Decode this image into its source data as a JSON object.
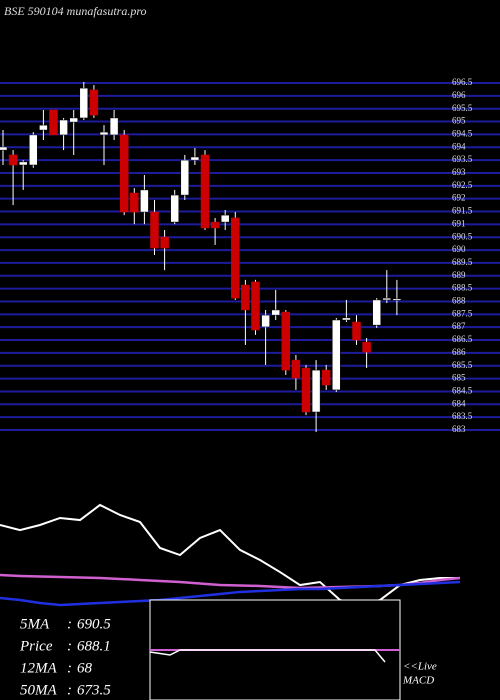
{
  "chart_data": [
    {
      "type": "candlestick",
      "title": "BSE 590104  munafasutra.pro",
      "up_color": "#ffffff",
      "down_color": "#cc0000",
      "grid_color": "#1c1c9c",
      "grid": true,
      "ylim": [
        683,
        696.5
      ],
      "yticks": [
        683,
        683.5,
        684,
        684.5,
        685,
        685.5,
        686,
        686.5,
        687,
        687.5,
        688,
        688.5,
        689,
        689.5,
        690,
        690.5,
        691,
        691.5,
        692,
        692.5,
        693,
        693.5,
        694,
        694.5,
        695,
        695.5,
        696,
        696.5
      ],
      "open": [
        693.89,
        693.7,
        693.31,
        693.31,
        694.67,
        695.45,
        694.48,
        694.98,
        695.14,
        696.23,
        694.48,
        694.48,
        694.48,
        692.22,
        691.48,
        691.48,
        690.51,
        691.09,
        692.14,
        693.5,
        693.7,
        691.09,
        691.09,
        691.25,
        688.64,
        688.76,
        687.01,
        687.47,
        687.59,
        685.72,
        685.41,
        683.7,
        685.33,
        684.56,
        687.28,
        687.2,
        686.42,
        687.08,
        688.06,
        688.06
      ],
      "high": [
        694.67,
        693.89,
        693.5,
        694.59,
        695.45,
        695.45,
        695.14,
        695.45,
        696.54,
        696.42,
        694.86,
        695.45,
        694.67,
        692.41,
        692.92,
        691.95,
        690.78,
        692.34,
        693.7,
        693.97,
        693.89,
        691.25,
        691.56,
        691.48,
        688.84,
        688.84,
        687.67,
        688.45,
        687.67,
        685.92,
        685.53,
        685.72,
        685.53,
        687.36,
        688.06,
        687.47,
        686.58,
        688.13,
        689.22,
        688.84
      ],
      "low": [
        693.31,
        691.75,
        692.34,
        693.2,
        694.28,
        694.48,
        693.89,
        693.7,
        695.06,
        695.14,
        693.31,
        694.28,
        691.36,
        691.01,
        691.01,
        689.81,
        689.22,
        691.01,
        691.95,
        693.31,
        690.78,
        690.2,
        690.78,
        688.06,
        686.31,
        686.7,
        685.53,
        687.28,
        685.14,
        684.56,
        683.58,
        682.92,
        684.56,
        684.48,
        687.2,
        686.31,
        685.41,
        686.97,
        687.94,
        687.47
      ],
      "close": [
        694.01,
        693.31,
        693.43,
        694.48,
        694.86,
        694.48,
        695.06,
        695.14,
        696.3,
        695.25,
        694.59,
        695.14,
        691.48,
        691.48,
        692.34,
        690.08,
        690.08,
        692.14,
        693.5,
        693.62,
        690.86,
        690.86,
        691.36,
        688.13,
        687.67,
        686.89,
        687.47,
        687.67,
        685.33,
        685.02,
        683.7,
        685.33,
        684.75,
        687.28,
        687.36,
        686.5,
        686.03,
        688.06,
        688.13,
        688.1
      ]
    },
    {
      "type": "line",
      "ylim": [
        -10,
        100
      ],
      "series": [
        {
          "color": "#ffffff",
          "values": [
            57.7,
            53.8,
            57.7,
            63.1,
            61.5,
            73.1,
            65.4,
            60.0,
            40.0,
            34.6,
            47.7,
            53.8,
            38.5,
            30.8,
            21.5,
            11.5,
            13.8,
            0,
            -3.8,
            0,
            11.5,
            15.4,
            16.9,
            16.9
          ]
        },
        {
          "color": "#d060d0",
          "values": [
            19.2,
            18.5,
            18.1,
            17.7,
            17.3,
            16.9,
            16.2,
            15.4,
            14.6,
            13.8,
            12.7,
            11.5,
            11.2,
            10.8,
            10.0,
            9.2,
            9.6,
            10.0,
            10.4,
            10.8,
            11.5,
            13.1,
            15.4,
            16.9
          ]
        },
        {
          "color": "#2030e0",
          "values": [
            1.5,
            0,
            -2.3,
            -3.8,
            -3.1,
            -2.3,
            -1.5,
            -0.8,
            0,
            1.5,
            3.1,
            4.6,
            6.2,
            6.9,
            7.7,
            8.5,
            8.5,
            9.2,
            10.0,
            10.8,
            11.5,
            12.3,
            13.1,
            13.8
          ]
        }
      ]
    }
  ],
  "info": [
    {
      "label": "5MA",
      "value": 690.5
    },
    {
      "label": "Price",
      "value": 688.1
    },
    {
      "label": "12MA",
      "value": 68
    },
    {
      "label": "50MA",
      "value": 673.5
    }
  ],
  "live_label": [
    "<<Live",
    "MACD"
  ]
}
